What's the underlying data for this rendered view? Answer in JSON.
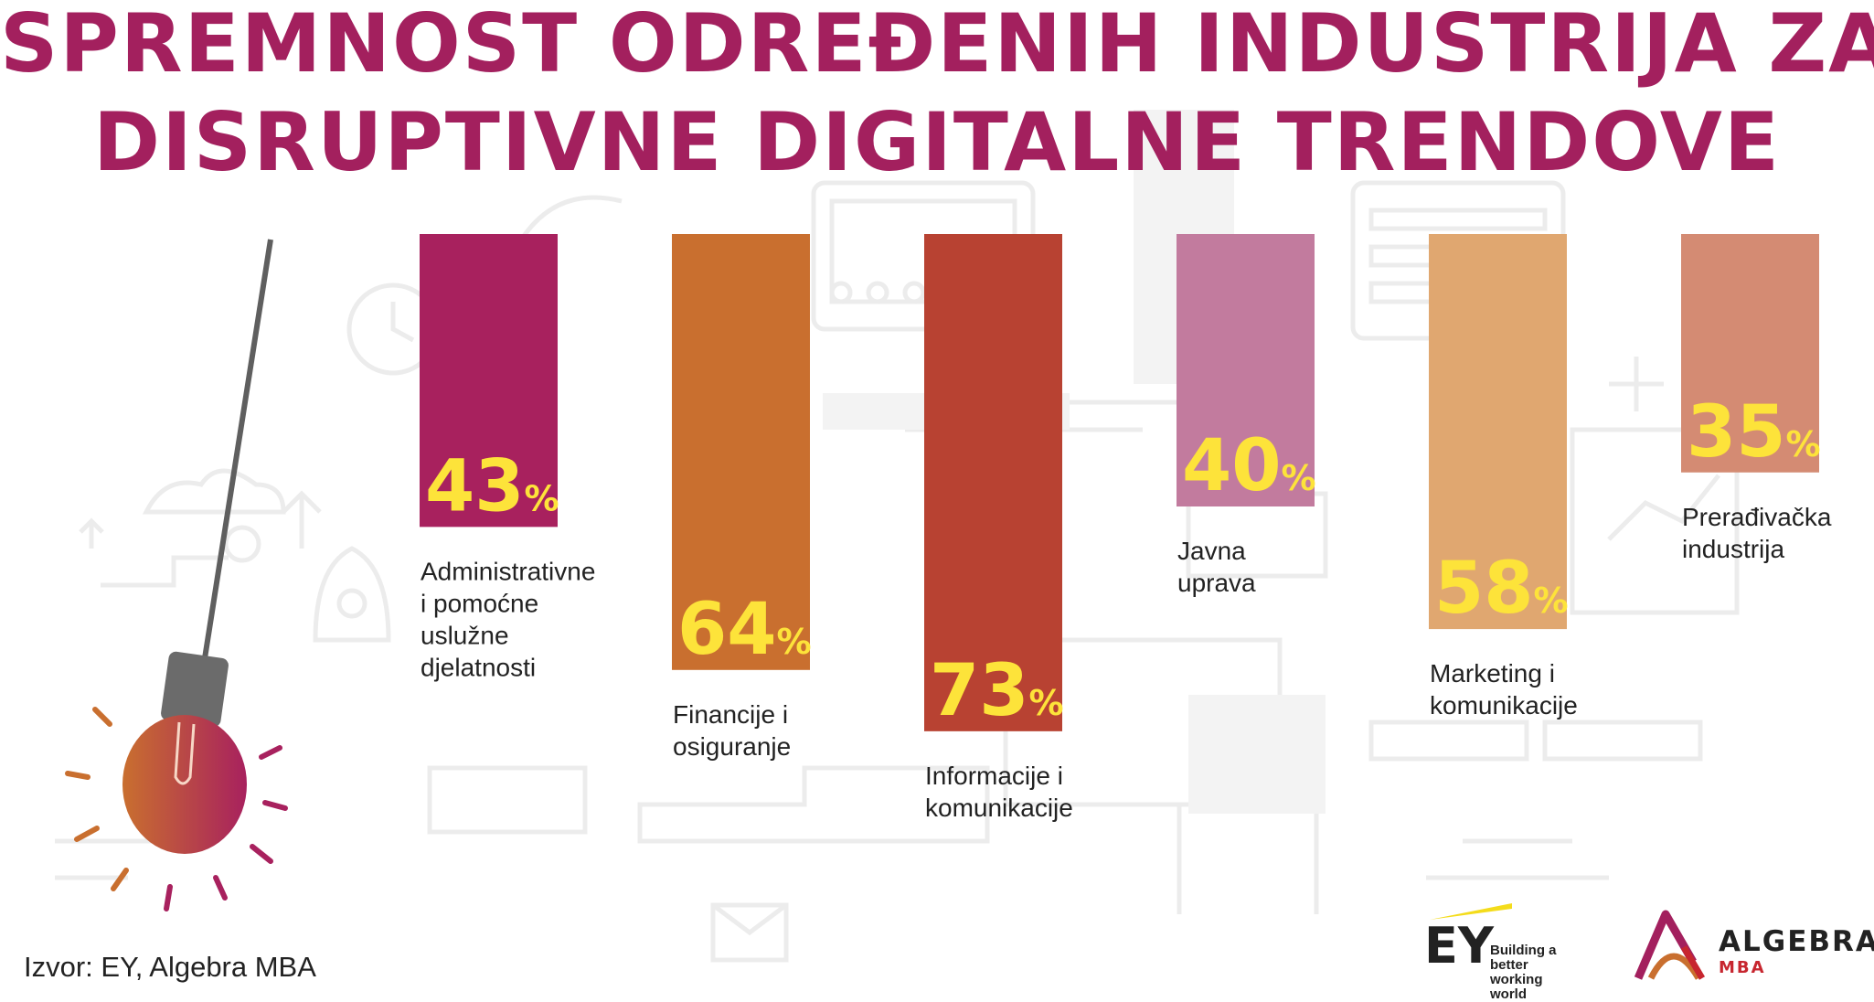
{
  "title_line1": "SPREMNOST ODREĐENIH INDUSTRIJA ZA",
  "title_line2": "DISRUPTIVNE DIGITALNE TRENDOVE",
  "source": "Izvor: EY, Algebra MBA",
  "logos": {
    "ey": {
      "mark": "EY",
      "tagline": "Building a better working world"
    },
    "algebra": {
      "name": "ALGEBRA",
      "sub": "MBA"
    }
  },
  "colors": {
    "title": "#a3205e",
    "value_label": "#fde33a",
    "bars": [
      "#a8215e",
      "#c96f2f",
      "#b84232",
      "#c27b9e",
      "#e0a770",
      "#d48b73"
    ]
  },
  "chart_data": {
    "type": "bar",
    "unit": "%",
    "categories": [
      [
        "Administrativne",
        "i pomoćne",
        "uslužne",
        "djelatnosti"
      ],
      [
        "Financije i",
        "osiguranje"
      ],
      [
        "Informacije i",
        "komunikacije"
      ],
      [
        "Javna",
        "uprava"
      ],
      [
        "Marketing i",
        "komunikacije"
      ],
      [
        "Prerađivačka",
        "industrija"
      ]
    ],
    "values": [
      43,
      64,
      73,
      40,
      58,
      35
    ],
    "ylim": [
      0,
      100
    ],
    "grid": false,
    "legend": "none"
  }
}
